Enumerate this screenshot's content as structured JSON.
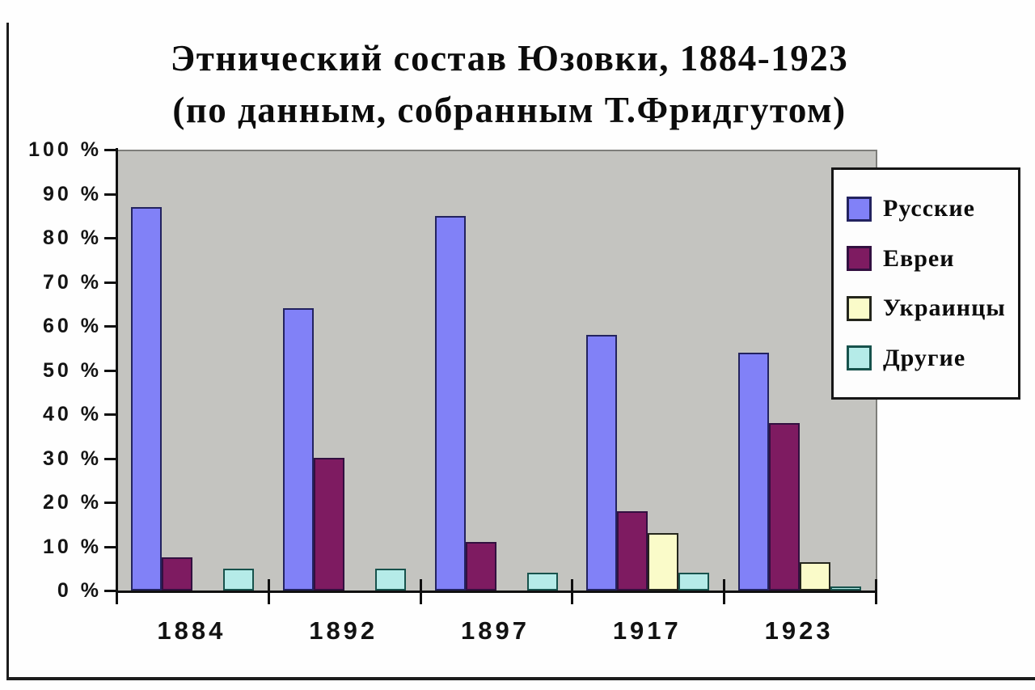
{
  "chart_data": {
    "type": "bar",
    "title": "Этнический состав Юзовки, 1884-1923",
    "subtitle": "(по данным, собранным Т.Фридгутом)",
    "categories": [
      "1884",
      "1892",
      "1897",
      "1917",
      "1923"
    ],
    "series": [
      {
        "name": "Русские",
        "key": "russians",
        "fill": "#8181f7",
        "border": "#23235f",
        "values": [
          87,
          64,
          85,
          58,
          54
        ]
      },
      {
        "name": "Евреи",
        "key": "jews",
        "fill": "#7e1b61",
        "border": "#321040",
        "values": [
          7.5,
          30,
          11,
          18,
          38
        ]
      },
      {
        "name": "Украинцы",
        "key": "ukrainians",
        "fill": "#fafbc9",
        "border": "#24261c",
        "values": [
          0,
          0,
          0,
          13,
          6.5
        ]
      },
      {
        "name": "Другие",
        "key": "others",
        "fill": "#b5ebe8",
        "border": "#17524c",
        "values": [
          5,
          5,
          4,
          4,
          1
        ]
      }
    ],
    "y_tick_labels": [
      "100 %",
      "90 %",
      "80 %",
      "70 %",
      "60 %",
      "50 %",
      "40 %",
      "30 %",
      "20 %",
      "10 %",
      "0 %"
    ],
    "ylim": [
      0,
      100
    ],
    "grid": false,
    "legend_position": "top-right",
    "plot_background": "#c4c4c0",
    "axis_color": "#101010"
  }
}
